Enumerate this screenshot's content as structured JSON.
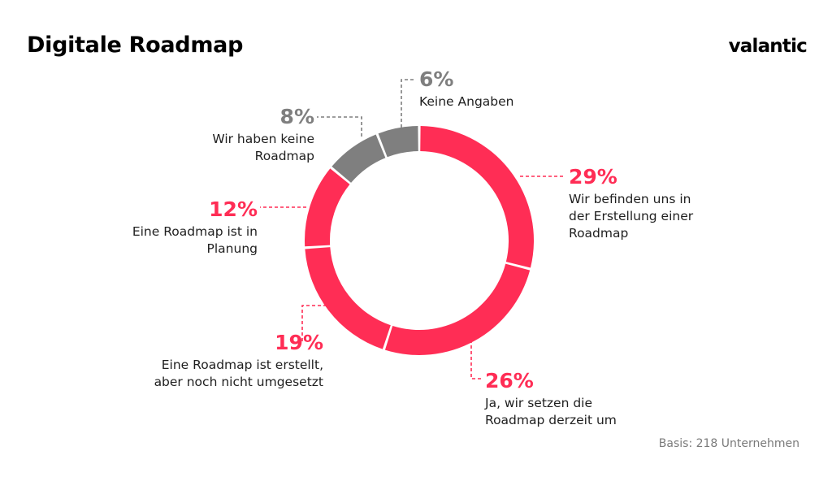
{
  "header": {
    "title": "Digitale Roadmap",
    "logo": "valantic"
  },
  "footer": {
    "basis": "Basis: 218 Unternehmen"
  },
  "colors": {
    "accent": "#ff2d55",
    "neutral": "#7f7f7f"
  },
  "chart_data": {
    "type": "pie",
    "variant": "donut",
    "start_angle_deg": 0,
    "direction": "clockwise",
    "slices": [
      {
        "value": 29,
        "label": "29%",
        "desc": [
          "Wir befinden uns in",
          "der Erstellung einer",
          "Roadmap"
        ],
        "color": "#ff2d55"
      },
      {
        "value": 26,
        "label": "26%",
        "desc": [
          "Ja, wir setzen die",
          "Roadmap derzeit um"
        ],
        "color": "#ff2d55"
      },
      {
        "value": 19,
        "label": "19%",
        "desc": [
          "Eine Roadmap ist erstellt,",
          "aber noch nicht umgesetzt"
        ],
        "color": "#ff2d55"
      },
      {
        "value": 12,
        "label": "12%",
        "desc": [
          "Eine Roadmap ist in",
          "Planung"
        ],
        "color": "#ff2d55"
      },
      {
        "value": 8,
        "label": "8%",
        "desc": [
          "Wir haben keine",
          "Roadmap"
        ],
        "color": "#7f7f7f"
      },
      {
        "value": 6,
        "label": "6%",
        "desc": [
          "Keine Angaben"
        ],
        "color": "#7f7f7f"
      }
    ]
  }
}
